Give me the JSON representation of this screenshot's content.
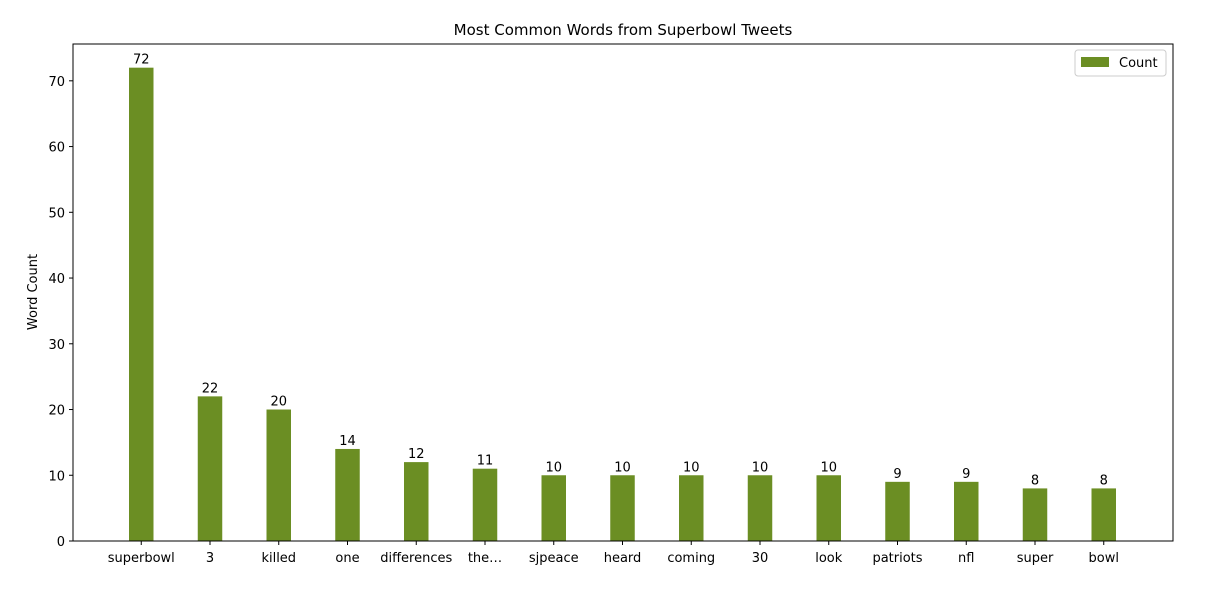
{
  "chart_data": {
    "type": "bar",
    "title": "Most Common Words from Superbowl Tweets",
    "xlabel": "",
    "ylabel": "Word Count",
    "categories": [
      "superbowl",
      "3",
      "killed",
      "one",
      "differences",
      "the…",
      "sjpeace",
      "heard",
      "coming",
      "30",
      "look",
      "patriots",
      "nfl",
      "super",
      "bowl"
    ],
    "series": [
      {
        "name": "Count",
        "values": [
          72,
          22,
          20,
          14,
          12,
          11,
          10,
          10,
          10,
          10,
          10,
          9,
          9,
          8,
          8
        ],
        "color": "#6b8e23"
      }
    ],
    "ylim": [
      0,
      75.6
    ],
    "yticks": [
      0,
      10,
      20,
      30,
      40,
      50,
      60,
      70
    ],
    "grid": false,
    "legend": "upper-right"
  }
}
